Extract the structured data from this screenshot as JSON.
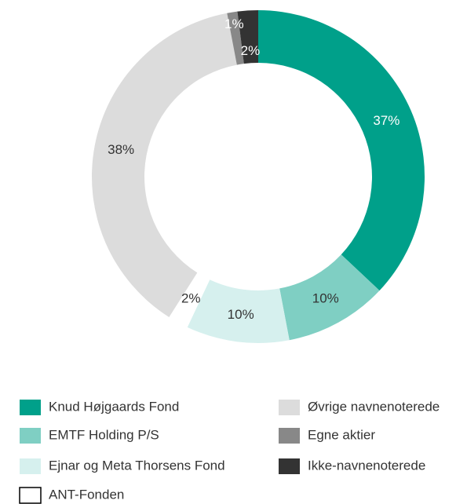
{
  "chart_data": {
    "type": "donut",
    "categories": [
      "Knud Højgaards Fond",
      "EMTF Holding P/S",
      "Ejnar og Meta Thorsens Fond",
      "ANT-Fonden",
      "Øvrige navnenoterede",
      "Egne aktier",
      "Ikke-navnenoterede"
    ],
    "values": [
      37,
      10,
      10,
      2,
      38,
      1,
      2
    ],
    "value_labels": [
      "37%",
      "10%",
      "10%",
      "2%",
      "38%",
      "1%",
      "2%"
    ],
    "colors": [
      "#00a08a",
      "#7fcfc3",
      "#d6f0ee",
      "#ffffff",
      "#dcdcdc",
      "#888888",
      "#333333"
    ],
    "legend": "bottom"
  }
}
